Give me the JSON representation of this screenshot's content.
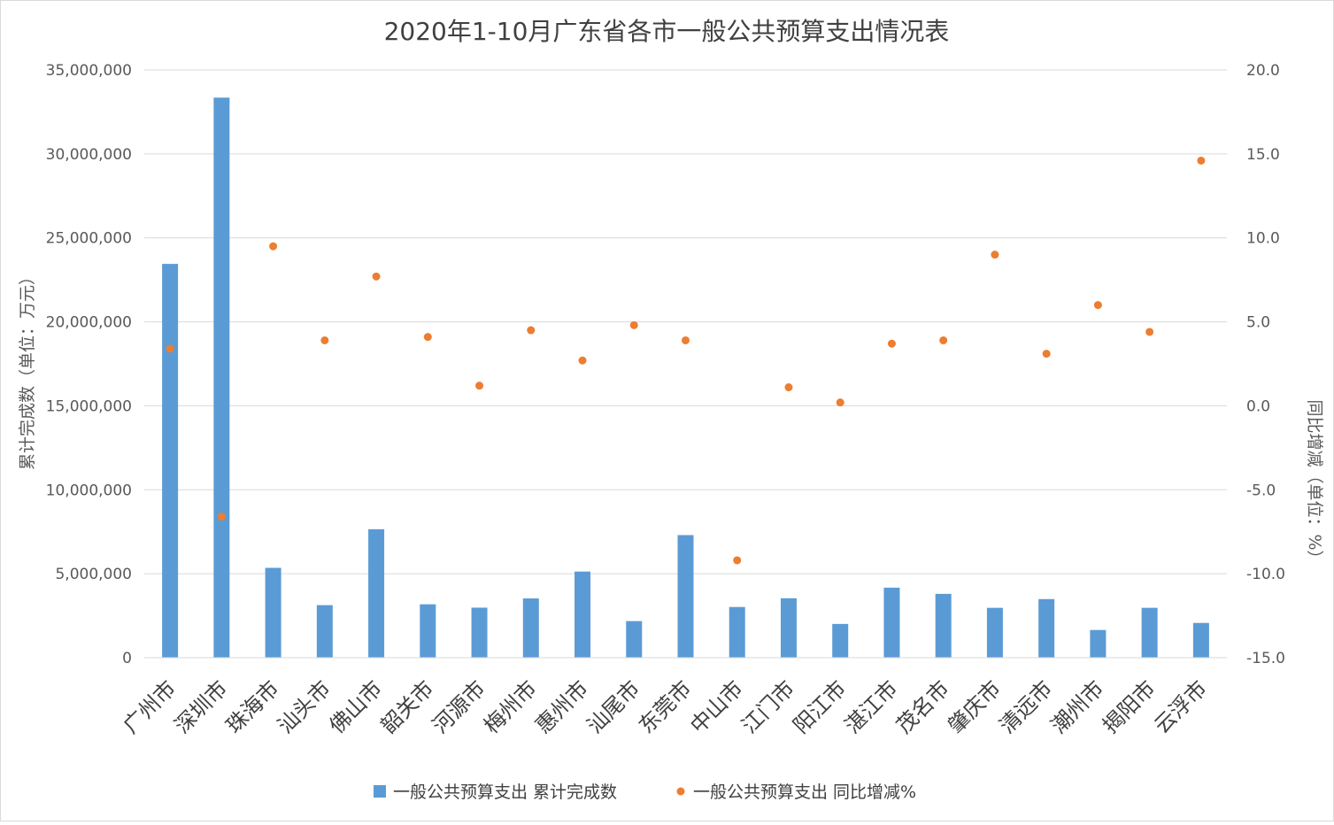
{
  "chart_data": {
    "type": "bar",
    "title": "2020年1-10月广东省各市一般公共预算支出情况表",
    "ylabel": "累计完成数（单位：万元）",
    "y2label": "同比增减（单位：%）",
    "ylim": [
      0,
      35000000
    ],
    "y2lim": [
      -15,
      20
    ],
    "ytick_labels": [
      "0",
      "5,000,000",
      "10,000,000",
      "15,000,000",
      "20,000,000",
      "25,000,000",
      "30,000,000",
      "35,000,000"
    ],
    "y2tick_labels": [
      "-15.0",
      "-10.0",
      "-5.0",
      "0.0",
      "5.0",
      "10.0",
      "15.0",
      "20.0"
    ],
    "grid": true,
    "legend_position": "bottom",
    "categories": [
      "广州市",
      "深圳市",
      "珠海市",
      "汕头市",
      "佛山市",
      "韶关市",
      "河源市",
      "梅州市",
      "惠州市",
      "汕尾市",
      "东莞市",
      "中山市",
      "江门市",
      "阳江市",
      "湛江市",
      "茂名市",
      "肇庆市",
      "清远市",
      "潮州市",
      "揭阳市",
      "云浮市"
    ],
    "series": [
      {
        "name": "一般公共预算支出 累计完成数",
        "type": "bar",
        "axis": "left",
        "color": "#5b9bd5",
        "values": [
          23450000,
          33350000,
          5350000,
          3130000,
          7650000,
          3180000,
          2980000,
          3530000,
          5130000,
          2180000,
          7300000,
          3020000,
          3540000,
          2010000,
          4170000,
          3800000,
          2970000,
          3490000,
          1650000,
          2970000,
          2070000
        ]
      },
      {
        "name": "一般公共预算支出 同比增减%",
        "type": "scatter",
        "axis": "right",
        "color": "#ed7d31",
        "values": [
          3.4,
          -6.6,
          9.5,
          3.9,
          7.7,
          4.1,
          1.2,
          4.5,
          2.7,
          4.8,
          3.9,
          -9.2,
          1.1,
          0.2,
          3.7,
          3.9,
          9.0,
          3.1,
          6.0,
          4.4,
          14.6
        ]
      }
    ]
  }
}
